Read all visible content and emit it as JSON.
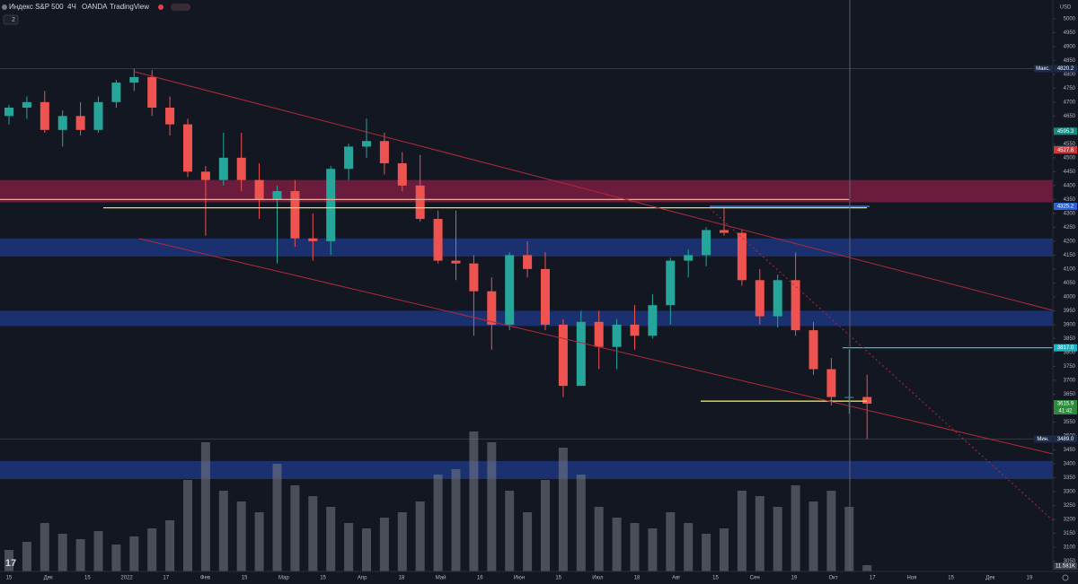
{
  "chart_data": {
    "type": "candlestick",
    "title": "Индекс S&P 500",
    "interval": "4Ч",
    "source": "OANDA",
    "brand": "TradingView",
    "currency": "USD",
    "indicator_count": 2,
    "up_color": "#26a69a",
    "down_color": "#ef5350",
    "open": [
      4650,
      4680,
      4700,
      4600,
      4650,
      4600,
      4700,
      4770,
      4790,
      4680,
      4620,
      4450,
      4420,
      4500,
      4420,
      4350,
      4380,
      4210,
      4200,
      4460,
      4540,
      4560,
      4480,
      4400,
      4280,
      4130,
      4120,
      4020,
      3900,
      4150,
      4100,
      3900,
      3680,
      3910,
      3820,
      3900,
      3860,
      3970,
      4130,
      4150,
      4240,
      4230,
      4060,
      3930,
      4060,
      3880,
      3740,
      3640,
      3640
    ],
    "high": [
      4690,
      4720,
      4740,
      4670,
      4700,
      4720,
      4780,
      4820.2,
      4815,
      4720,
      4640,
      4470,
      4590,
      4590,
      4480,
      4400,
      4420,
      4300,
      4470,
      4550,
      4640,
      4590,
      4520,
      4510,
      4310,
      4310,
      4150,
      4070,
      4160,
      4200,
      4160,
      3920,
      3950,
      3950,
      3920,
      3970,
      4010,
      4140,
      4170,
      4250,
      4325.2,
      4240,
      4100,
      4080,
      4160,
      3910,
      3780,
      3810,
      3720
    ],
    "low": [
      4620,
      4640,
      4590,
      4540,
      4580,
      4590,
      4680,
      4740,
      4650,
      4580,
      4430,
      4220,
      4400,
      4380,
      4280,
      4120,
      4180,
      4130,
      4150,
      4420,
      4500,
      4440,
      4380,
      4270,
      4120,
      4060,
      3860,
      3810,
      3880,
      4070,
      3880,
      3640,
      3680,
      3740,
      3740,
      3810,
      3850,
      3900,
      4070,
      4110,
      4220,
      4040,
      3900,
      3890,
      3860,
      3720,
      3610,
      3580,
      3489.0
    ],
    "close": [
      4680,
      4700,
      4600,
      4650,
      4600,
      4700,
      4770,
      4790,
      4680,
      4620,
      4450,
      4420,
      4500,
      4420,
      4350,
      4380,
      4210,
      4200,
      4460,
      4540,
      4560,
      4480,
      4400,
      4280,
      4130,
      4120,
      4020,
      3900,
      4150,
      4100,
      3900,
      3680,
      3910,
      3820,
      3900,
      3860,
      3970,
      4130,
      4150,
      4240,
      4230,
      4060,
      3930,
      4060,
      3880,
      3740,
      3640,
      3640,
      3615.9
    ],
    "volume": [
      40,
      55,
      90,
      70,
      60,
      75,
      50,
      65,
      80,
      95,
      170,
      240,
      150,
      130,
      110,
      200,
      160,
      140,
      120,
      90,
      80,
      100,
      110,
      130,
      180,
      190,
      260,
      240,
      150,
      110,
      170,
      230,
      180,
      120,
      100,
      90,
      80,
      110,
      90,
      70,
      80,
      150,
      140,
      120,
      160,
      130,
      150,
      120,
      11.581
    ],
    "ylim": [
      3000,
      5067
    ],
    "yticks": [
      3050,
      3100,
      3150,
      3200,
      3250,
      3300,
      3350,
      3400,
      3450,
      3500,
      3550,
      3600,
      3650,
      3700,
      3750,
      3800,
      3850,
      3900,
      3950,
      4000,
      4050,
      4100,
      4150,
      4200,
      4250,
      4300,
      4350,
      4400,
      4450,
      4500,
      4550,
      4600,
      4650,
      4700,
      4750,
      4800,
      4850,
      4900,
      4950,
      5000
    ],
    "xticks": [
      "15",
      "Дек",
      "15",
      "2022",
      "17",
      "Фев",
      "15",
      "Мар",
      "15",
      "Апр",
      "18",
      "Май",
      "16",
      "Июн",
      "15",
      "Июл",
      "18",
      "Авг",
      "15",
      "Сен",
      "19",
      "Окт",
      "17",
      "Ноя",
      "15",
      "Дек",
      "19"
    ],
    "grid": false,
    "zones": [
      {
        "from": 4340,
        "to": 4420,
        "color": "#8a1f45"
      },
      {
        "from": 4145,
        "to": 4210,
        "color": "#1f3a8a"
      },
      {
        "from": 3895,
        "to": 3950,
        "color": "#1f3a8a"
      },
      {
        "from": 3345,
        "to": 3410,
        "color": "#1f3a8a"
      }
    ],
    "levels": [
      {
        "value": 4350,
        "color": "#f0a8a0"
      },
      {
        "value": 4320,
        "color": "#e8e04a"
      },
      {
        "value": 4325.2,
        "color": "#3f7be0"
      },
      {
        "value": 3817,
        "color": "#22c6d8"
      },
      {
        "value": 3625,
        "color": "#e8e04a"
      }
    ],
    "price_tags": [
      {
        "prefix": "Макс.",
        "value": 4820.2,
        "label": "4820.2",
        "color": "#1e2a4a"
      },
      {
        "value": 4595.3,
        "label": "4595.3",
        "color": "#168a7e"
      },
      {
        "value": 4529.5,
        "label": "4529.5",
        "color": "#6d6f78"
      },
      {
        "value": 4527.8,
        "label": "4527.8",
        "color": "#d0363a"
      },
      {
        "value": 4325.2,
        "label": "4325.2",
        "color": "#2a62d6"
      },
      {
        "value": 3817,
        "label": "3817.0",
        "color": "#1ab4c8"
      },
      {
        "value": 3615.9,
        "label": "3615.9",
        "timer": "41:42",
        "color": "#2e8b3e"
      },
      {
        "prefix": "Мин.",
        "value": 3489,
        "label": "3489.0",
        "color": "#1e2a4a"
      }
    ],
    "volume_tag": {
      "value": 11.581,
      "label": "11.581K"
    }
  }
}
